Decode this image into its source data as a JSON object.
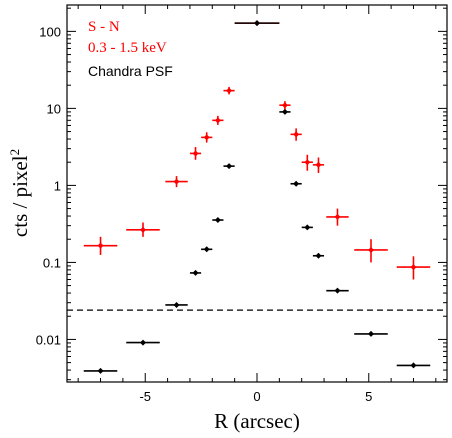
{
  "chart_data": {
    "type": "scatter",
    "xlabel": "R (arcsec)",
    "ylabel_base": "cts / pixel",
    "ylabel_exp": "2",
    "xlim": [
      -8.5,
      8.5
    ],
    "ylim": [
      0.0028,
      220
    ],
    "yscale": "log",
    "xticks": [
      -5,
      0,
      5
    ],
    "xtick_labels": [
      "-5",
      "0",
      "5"
    ],
    "yticks": [
      0.01,
      0.1,
      1,
      10,
      100
    ],
    "ytick_labels": [
      "0.01",
      "0.1",
      "1",
      "10",
      "100"
    ],
    "grid": false,
    "legend_position": "top-left",
    "legend": [
      {
        "label": "S - N",
        "color": "#ff0000"
      },
      {
        "label": "0.3 - 1.5 keV",
        "color": "#ff0000"
      },
      {
        "label": "Chandra PSF",
        "color": "#000000"
      }
    ],
    "reference_line": {
      "y": 0.024,
      "style": "dashed",
      "color": "#000000"
    },
    "series": [
      {
        "color": "#ff0000",
        "points": [
          {
            "x": -7.0,
            "y": 0.165,
            "xerr": 0.75,
            "ylo": 0.125,
            "yhi": 0.215
          },
          {
            "x": -5.1,
            "y": 0.265,
            "xerr": 0.75,
            "ylo": 0.215,
            "yhi": 0.33
          },
          {
            "x": -3.6,
            "y": 1.12,
            "xerr": 0.5,
            "ylo": 0.95,
            "yhi": 1.32
          },
          {
            "x": -2.75,
            "y": 2.6,
            "xerr": 0.25,
            "ylo": 2.15,
            "yhi": 3.15
          },
          {
            "x": -2.25,
            "y": 4.2,
            "xerr": 0.25,
            "ylo": 3.6,
            "yhi": 4.9
          },
          {
            "x": -1.75,
            "y": 7.0,
            "xerr": 0.25,
            "ylo": 6.1,
            "yhi": 8.0
          },
          {
            "x": -1.25,
            "y": 17.0,
            "xerr": 0.25,
            "ylo": 15.2,
            "yhi": 19.0
          },
          {
            "x": 0.0,
            "y": 128.0,
            "xerr": 1.0,
            "ylo": 124.0,
            "yhi": 132.0
          },
          {
            "x": 1.25,
            "y": 11.0,
            "xerr": 0.25,
            "ylo": 9.7,
            "yhi": 12.4
          },
          {
            "x": 1.75,
            "y": 4.6,
            "xerr": 0.25,
            "ylo": 3.8,
            "yhi": 5.5
          },
          {
            "x": 2.25,
            "y": 2.0,
            "xerr": 0.25,
            "ylo": 1.55,
            "yhi": 2.5
          },
          {
            "x": 2.75,
            "y": 1.85,
            "xerr": 0.25,
            "ylo": 1.45,
            "yhi": 2.3
          },
          {
            "x": 3.6,
            "y": 0.39,
            "xerr": 0.5,
            "ylo": 0.3,
            "yhi": 0.5
          },
          {
            "x": 5.1,
            "y": 0.145,
            "xerr": 0.75,
            "ylo": 0.1,
            "yhi": 0.2
          },
          {
            "x": 7.0,
            "y": 0.087,
            "xerr": 0.75,
            "ylo": 0.06,
            "yhi": 0.12
          }
        ]
      },
      {
        "color": "#000000",
        "points": [
          {
            "x": -7.0,
            "y": 0.0039,
            "xerr": 0.75
          },
          {
            "x": -5.1,
            "y": 0.0091,
            "xerr": 0.75
          },
          {
            "x": -3.6,
            "y": 0.028,
            "xerr": 0.5
          },
          {
            "x": -2.75,
            "y": 0.073,
            "xerr": 0.25
          },
          {
            "x": -2.25,
            "y": 0.148,
            "xerr": 0.25
          },
          {
            "x": -1.75,
            "y": 0.355,
            "xerr": 0.25
          },
          {
            "x": -1.25,
            "y": 1.78,
            "xerr": 0.25
          },
          {
            "x": 0.0,
            "y": 128.0,
            "xerr": 1.0
          },
          {
            "x": 1.25,
            "y": 9.0,
            "xerr": 0.25
          },
          {
            "x": 1.75,
            "y": 1.05,
            "xerr": 0.25
          },
          {
            "x": 2.25,
            "y": 0.285,
            "xerr": 0.25
          },
          {
            "x": 2.75,
            "y": 0.122,
            "xerr": 0.25
          },
          {
            "x": 3.6,
            "y": 0.043,
            "xerr": 0.5
          },
          {
            "x": 5.1,
            "y": 0.0118,
            "xerr": 0.75
          },
          {
            "x": 7.0,
            "y": 0.0046,
            "xerr": 0.75
          }
        ]
      }
    ]
  }
}
